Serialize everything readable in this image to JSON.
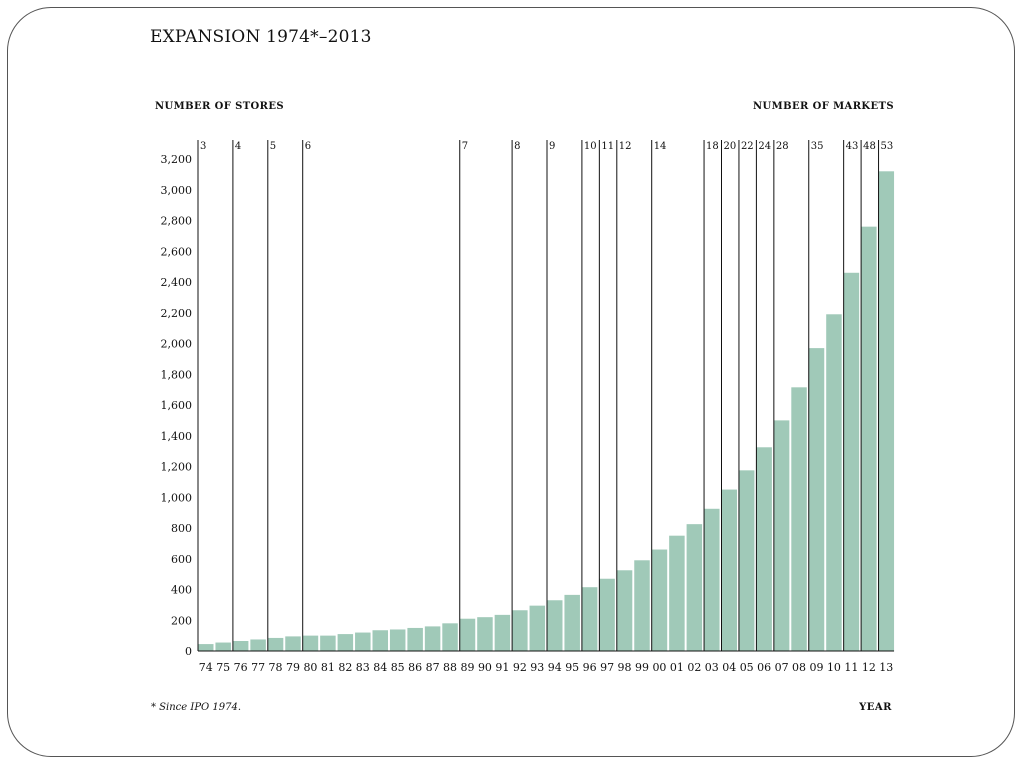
{
  "title": "EXPANSION 1974*–2013",
  "left_axis_heading": "NUMBER OF STORES",
  "right_axis_heading": "NUMBER OF MARKETS",
  "footnote": "* Since IPO 1974.",
  "x_axis_title": "YEAR",
  "colors": {
    "bar": "#a0c9b8",
    "line": "#111111",
    "text": "#111111"
  },
  "chart_data": {
    "type": "bar",
    "title": "EXPANSION 1974*–2013",
    "xlabel": "YEAR",
    "ylabel": "NUMBER OF STORES",
    "ylim": [
      0,
      3200
    ],
    "yticks": [
      0,
      200,
      400,
      600,
      800,
      1000,
      1200,
      1400,
      1600,
      1800,
      2000,
      2200,
      2400,
      2600,
      2800,
      3000,
      3200
    ],
    "ytick_labels": [
      "0",
      "200",
      "400",
      "600",
      "800",
      "1,000",
      "1,200",
      "1,400",
      "1,600",
      "1,800",
      "2,000",
      "2,200",
      "2,400",
      "2,600",
      "2,800",
      "3,000",
      "3,200"
    ],
    "categories": [
      "74",
      "75",
      "76",
      "77",
      "78",
      "79",
      "80",
      "81",
      "82",
      "83",
      "84",
      "85",
      "86",
      "87",
      "88",
      "89",
      "90",
      "91",
      "92",
      "93",
      "94",
      "95",
      "96",
      "97",
      "98",
      "99",
      "00",
      "01",
      "02",
      "03",
      "04",
      "05",
      "06",
      "07",
      "08",
      "09",
      "10",
      "11",
      "12",
      "13"
    ],
    "values": [
      45,
      55,
      65,
      75,
      85,
      95,
      100,
      100,
      110,
      120,
      135,
      140,
      150,
      160,
      180,
      210,
      220,
      235,
      265,
      295,
      330,
      365,
      415,
      470,
      525,
      590,
      660,
      750,
      825,
      925,
      1050,
      1175,
      1325,
      1500,
      1715,
      1970,
      2190,
      2460,
      2760,
      3120
    ],
    "markets": [
      {
        "year": "74",
        "count": "3"
      },
      {
        "year": "76",
        "count": "4"
      },
      {
        "year": "78",
        "count": "5"
      },
      {
        "year": "80",
        "count": "6"
      },
      {
        "year": "89",
        "count": "7"
      },
      {
        "year": "92",
        "count": "8"
      },
      {
        "year": "94",
        "count": "9"
      },
      {
        "year": "96",
        "count": "10"
      },
      {
        "year": "97",
        "count": "11"
      },
      {
        "year": "98",
        "count": "12"
      },
      {
        "year": "00",
        "count": "14"
      },
      {
        "year": "03",
        "count": "18"
      },
      {
        "year": "04",
        "count": "20"
      },
      {
        "year": "05",
        "count": "22"
      },
      {
        "year": "06",
        "count": "24"
      },
      {
        "year": "07",
        "count": "28"
      },
      {
        "year": "09",
        "count": "35"
      },
      {
        "year": "11",
        "count": "43"
      },
      {
        "year": "12",
        "count": "48"
      },
      {
        "year": "13",
        "count": "53"
      }
    ]
  }
}
